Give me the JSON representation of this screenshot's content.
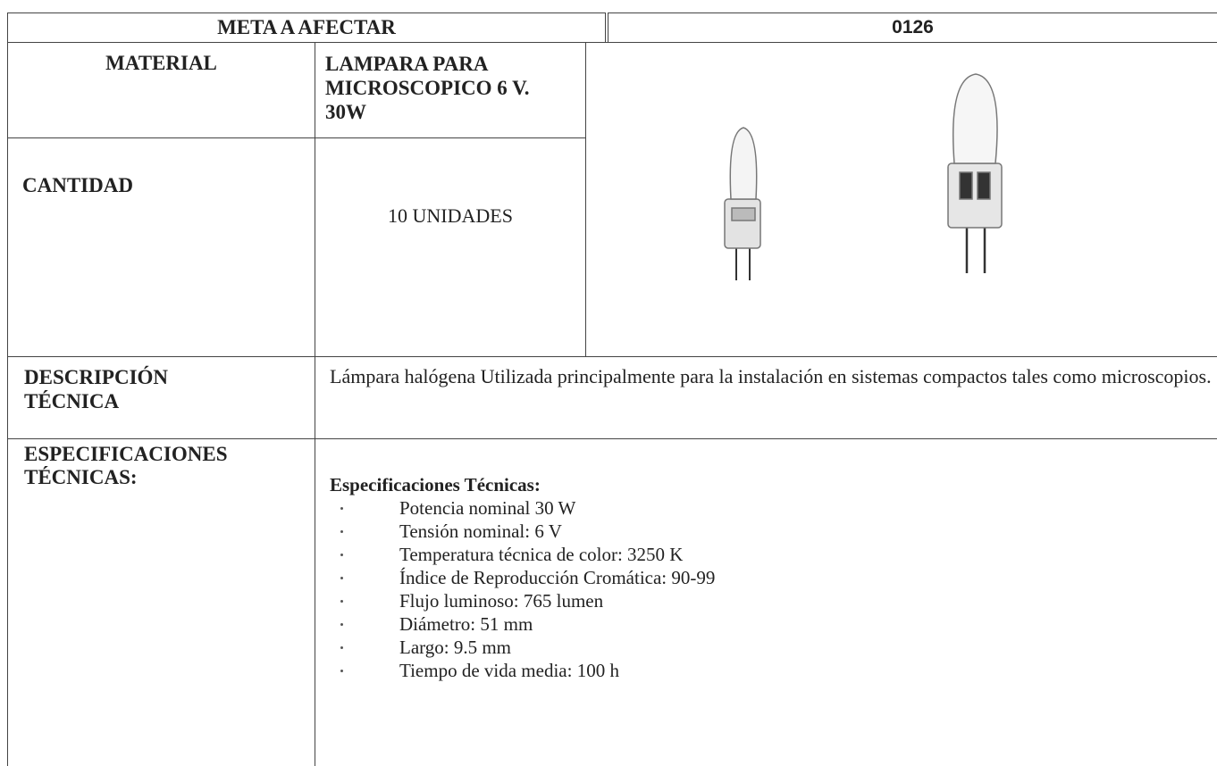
{
  "header": {
    "meta_label": "META A AFECTAR",
    "meta_value": "0126"
  },
  "material": {
    "label": "MATERIAL",
    "value": "LAMPARA PARA MICROSCOPICO 6 V. 30W"
  },
  "cantidad": {
    "label": "CANTIDAD",
    "value": "10 UNIDADES"
  },
  "descripcion": {
    "label": "DESCRIPCIÓN TÉCNICA",
    "value": "Lámpara halógena  Utilizada principalmente para la instalación en sistemas compactos tales como microscopios."
  },
  "especificaciones": {
    "label": "ESPECIFICACIONES TÉCNICAS:",
    "heading": "Especificaciones Técnicas:",
    "items": [
      "Potencia nominal 30 W",
      "Tensión nominal: 6 V",
      "Temperatura técnica de color: 3250 K",
      "Índice de Reproducción Cromática: 90-99",
      "Flujo luminoso: 765 lumen",
      "Diámetro: 51 mm",
      "Largo: 9.5 mm",
      "Tiempo de vida media: 100 h"
    ]
  }
}
